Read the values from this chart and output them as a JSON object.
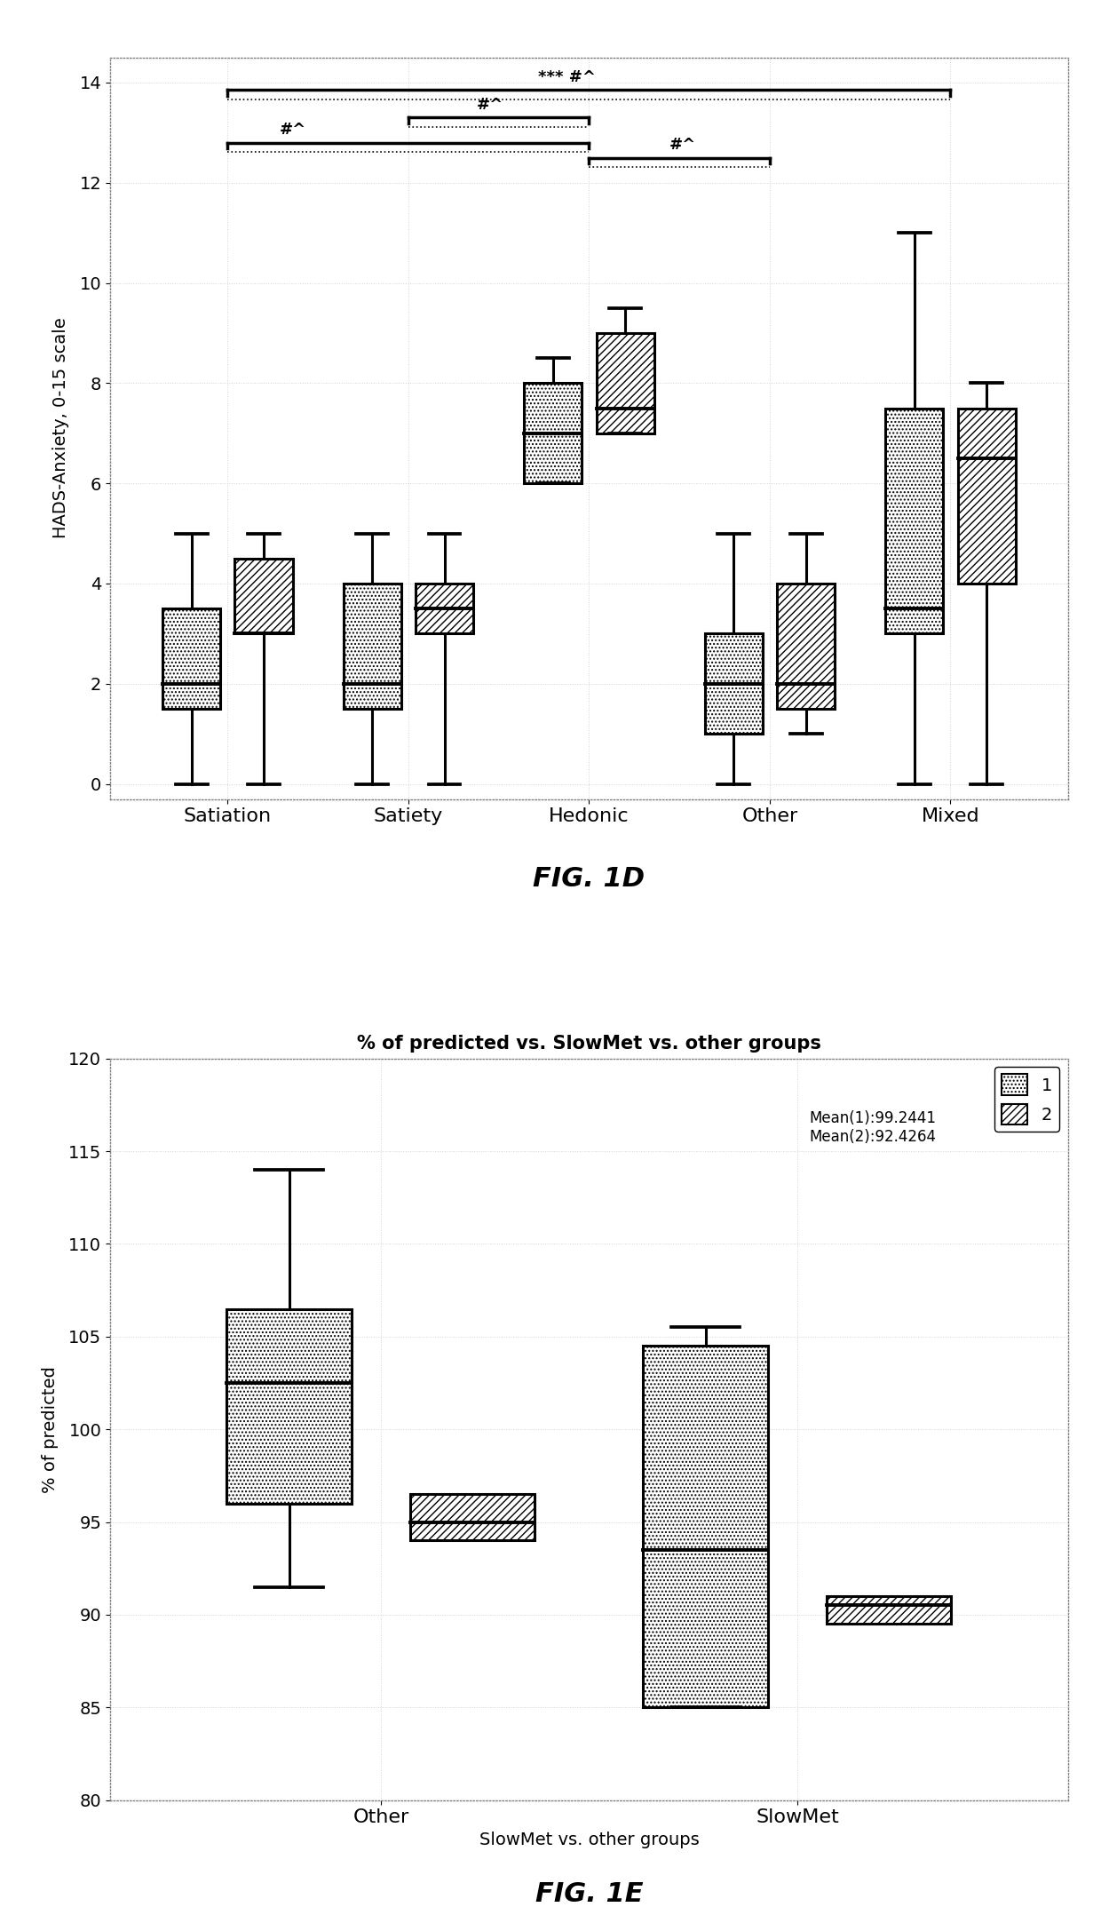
{
  "fig1d": {
    "ylabel": "HADS-Anxiety, 0-15 scale",
    "categories": [
      "Satiation",
      "Satiety",
      "Hedonic",
      "Other",
      "Mixed"
    ],
    "ylim": [
      -0.3,
      14.5
    ],
    "yticks": [
      0,
      2,
      4,
      6,
      8,
      10,
      12,
      14
    ],
    "boxes": [
      {
        "group": "Satiation",
        "dotted": {
          "q1": 1.5,
          "median": 2.0,
          "q3": 3.5,
          "whislo": 0.0,
          "whishi": 5.0
        },
        "hatched": {
          "q1": 3.0,
          "median": 3.0,
          "q3": 4.5,
          "whislo": 0.0,
          "whishi": 5.0
        }
      },
      {
        "group": "Satiety",
        "dotted": {
          "q1": 1.5,
          "median": 2.0,
          "q3": 4.0,
          "whislo": 0.0,
          "whishi": 5.0
        },
        "hatched": {
          "q1": 3.0,
          "median": 3.5,
          "q3": 4.0,
          "whislo": 0.0,
          "whishi": 5.0
        }
      },
      {
        "group": "Hedonic",
        "dotted": {
          "q1": 6.0,
          "median": 7.0,
          "q3": 8.0,
          "whislo": 6.0,
          "whishi": 8.5
        },
        "hatched": {
          "q1": 7.0,
          "median": 7.5,
          "q3": 9.0,
          "whislo": 7.0,
          "whishi": 9.5
        }
      },
      {
        "group": "Other",
        "dotted": {
          "q1": 1.0,
          "median": 2.0,
          "q3": 3.0,
          "whislo": 0.0,
          "whishi": 5.0
        },
        "hatched": {
          "q1": 1.5,
          "median": 2.0,
          "q3": 4.0,
          "whislo": 1.0,
          "whishi": 5.0
        }
      },
      {
        "group": "Mixed",
        "dotted": {
          "q1": 3.0,
          "median": 3.5,
          "q3": 7.5,
          "whislo": 0.0,
          "whishi": 11.0
        },
        "hatched": {
          "q1": 4.0,
          "median": 6.5,
          "q3": 7.5,
          "whislo": 0.0,
          "whishi": 8.0
        }
      }
    ],
    "sig_bars": [
      {
        "xl": 0,
        "xr": 4,
        "y": 13.85,
        "label": "*** #^",
        "txf": 0.47,
        "double": true
      },
      {
        "xl": 0,
        "xr": 2,
        "y": 12.8,
        "label": "#^",
        "txf": 0.18,
        "double": true
      },
      {
        "xl": 1,
        "xr": 2,
        "y": 13.3,
        "label": "#^",
        "txf": 0.45,
        "double": true
      },
      {
        "xl": 2,
        "xr": 3,
        "y": 12.5,
        "label": "#^",
        "txf": 0.52,
        "double": true
      }
    ]
  },
  "fig1e": {
    "title": "% of predicted vs. SlowMet vs. other groups",
    "ylabel": "% of predicted",
    "xlabel": "SlowMet vs. other groups",
    "categories": [
      "Other",
      "SlowMet"
    ],
    "ylim": [
      80,
      120
    ],
    "yticks": [
      80,
      85,
      90,
      95,
      100,
      105,
      110,
      115,
      120
    ],
    "boxes": [
      {
        "group": "Other",
        "dotted": {
          "q1": 96.0,
          "median": 102.5,
          "q3": 106.5,
          "whislo": 91.5,
          "whishi": 114.0
        },
        "hatched": {
          "q1": 94.0,
          "median": 95.0,
          "q3": 96.5,
          "whislo": null,
          "whishi": null
        }
      },
      {
        "group": "SlowMet",
        "dotted": {
          "q1": 85.0,
          "median": 93.5,
          "q3": 104.5,
          "whislo": 85.0,
          "whishi": 105.5
        },
        "hatched": {
          "q1": 89.5,
          "median": 90.5,
          "q3": 91.0,
          "whislo": null,
          "whishi": null
        }
      }
    ],
    "legend_text": "Mean(1):99.2441\nMean(2):92.4264",
    "legend_labels": [
      "1",
      "2"
    ]
  }
}
